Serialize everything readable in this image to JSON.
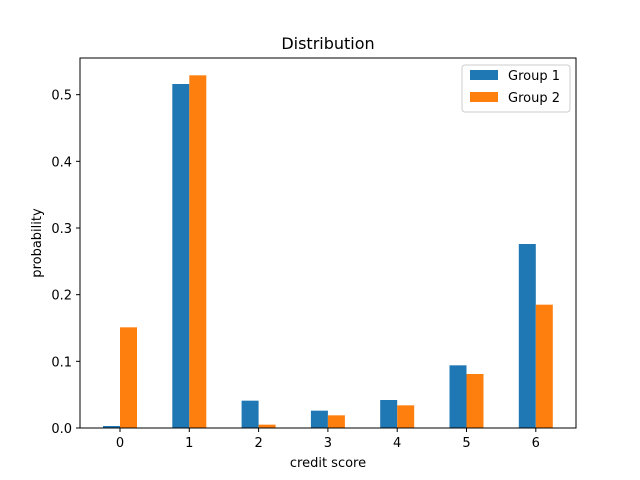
{
  "chart_data": {
    "type": "bar",
    "title": "Distribution",
    "xlabel": "credit score",
    "ylabel": "probability",
    "categories": [
      "0",
      "1",
      "2",
      "3",
      "4",
      "5",
      "6"
    ],
    "series": [
      {
        "name": "Group 1",
        "color": "#1f77b4",
        "values": [
          0.003,
          0.516,
          0.041,
          0.026,
          0.042,
          0.094,
          0.276
        ]
      },
      {
        "name": "Group 2",
        "color": "#ff7f0e",
        "values": [
          0.151,
          0.529,
          0.005,
          0.019,
          0.034,
          0.081,
          0.185
        ]
      }
    ],
    "ylim": [
      0,
      0.555
    ],
    "yticks": [
      0.0,
      0.1,
      0.2,
      0.3,
      0.4,
      0.5
    ],
    "ytick_labels": [
      "0.0",
      "0.1",
      "0.2",
      "0.3",
      "0.4",
      "0.5"
    ],
    "grid": false,
    "legend_position": "top-right"
  }
}
